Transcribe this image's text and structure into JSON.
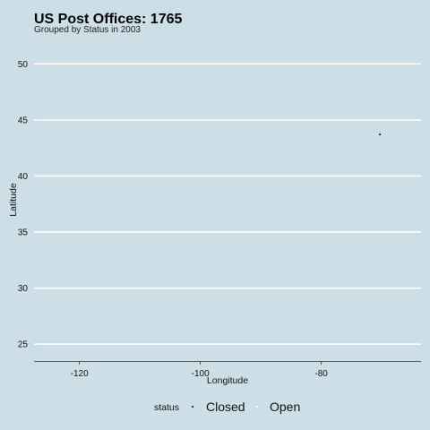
{
  "chart_data": {
    "type": "scatter",
    "title": "US Post Offices: 1765",
    "subtitle": "Grouped by Status in 2003",
    "xlabel": "Longitude",
    "ylabel": "Latitude",
    "xlim": [
      -127.5,
      -63.5
    ],
    "ylim": [
      23.5,
      52.5
    ],
    "x_ticks": [
      -120,
      -100,
      -80
    ],
    "y_ticks": [
      25,
      30,
      35,
      40,
      45,
      50
    ],
    "x_tick_labels": [
      "-120",
      "-100",
      "-80"
    ],
    "y_tick_labels": [
      "25",
      "30",
      "35",
      "40",
      "45",
      "50"
    ],
    "grid": true,
    "legend_position": "bottom",
    "legend_title": "status",
    "series": [
      {
        "name": "Closed",
        "color": "#000000",
        "points": [
          {
            "x": -70.3,
            "y": 43.7
          }
        ]
      },
      {
        "name": "Open",
        "color": "#ffffff",
        "points": []
      }
    ]
  }
}
